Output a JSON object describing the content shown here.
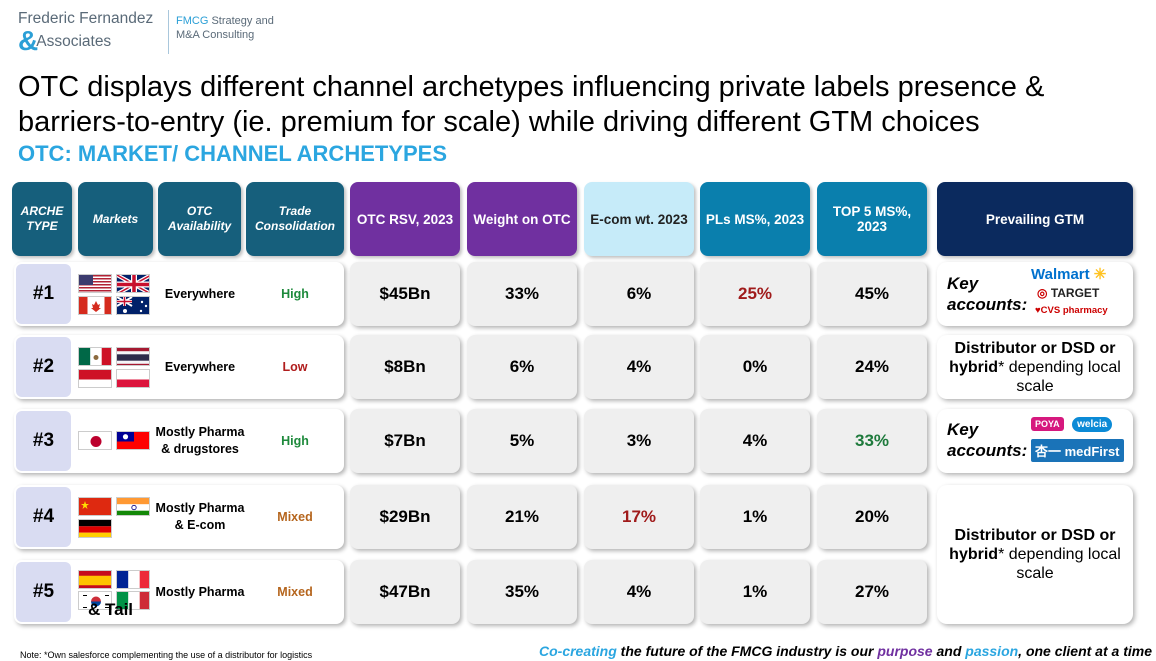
{
  "logo": {
    "name_line1": "Frederic Fernandez",
    "amp": "&",
    "name_line2": "Associates",
    "tag_hl": "FMCG",
    "tag_line1_rest": " Strategy and",
    "tag_line2": "M&A Consulting"
  },
  "title": "OTC displays different channel archetypes influencing private labels presence & barriers-to-entry (ie. premium for scale) while driving different GTM choices",
  "subtitle": "OTC: MARKET/ CHANNEL ARCHETYPES",
  "headers": {
    "archetype": "ARCHE TYPE",
    "markets": "Markets",
    "availability": "OTC Availability",
    "consolidation": "Trade Consolidation",
    "rsv": "OTC RSV, 2023",
    "weight": "Weight on OTC",
    "ecom": "E-com wt. 2023",
    "pls": "PLs MS%, 2023",
    "top5": "TOP 5 MS%, 2023",
    "gtm": "Prevailing GTM"
  },
  "rows": [
    {
      "num": "#1",
      "availability": "Everywhere",
      "consolidation": "High",
      "consolidation_color": "#1e8a3c",
      "rsv": "$45Bn",
      "weight": "33%",
      "ecom": "6%",
      "pls": "25%",
      "top5": "45%",
      "flags": [
        "us",
        "uk",
        "canada",
        "australia"
      ]
    },
    {
      "num": "#2",
      "availability": "Everywhere",
      "consolidation": "Low",
      "consolidation_color": "#b01d1d",
      "rsv": "$8Bn",
      "weight": "6%",
      "ecom": "4%",
      "pls": "0%",
      "top5": "24%",
      "flags": [
        "mexico",
        "thailand",
        "indonesia",
        "poland"
      ]
    },
    {
      "num": "#3",
      "availability": "Mostly Pharma & drugstores",
      "consolidation": "High",
      "consolidation_color": "#1e8a3c",
      "rsv": "$7Bn",
      "weight": "5%",
      "ecom": "3%",
      "pls": "4%",
      "top5": "33%",
      "flags": [
        "japan",
        "taiwan"
      ]
    },
    {
      "num": "#4",
      "availability": "Mostly Pharma & E-com",
      "consolidation": "Mixed",
      "consolidation_color": "#b5651d",
      "rsv": "$29Bn",
      "weight": "21%",
      "ecom": "17%",
      "pls": "1%",
      "top5": "20%",
      "flags": [
        "china",
        "india",
        "germany"
      ]
    },
    {
      "num": "#5",
      "availability": "Mostly Pharma",
      "consolidation": "Mixed",
      "consolidation_color": "#b5651d",
      "rsv": "$47Bn",
      "weight": "35%",
      "ecom": "4%",
      "pls": "1%",
      "top5": "27%",
      "flags": [
        "spain",
        "france",
        "korea",
        "italy"
      ],
      "tail": "& Tail"
    }
  ],
  "gtm": {
    "key_label": "Key accounts:",
    "row1_retailers": [
      "Walmart",
      "TARGET",
      "CVS pharmacy"
    ],
    "row2_bold": "Distributor or DSD or hybrid",
    "row2_rest": "* depending local scale",
    "row3_retailers": [
      "POYA",
      "welcia",
      "杏一 medFirst"
    ],
    "row45_bold": "Distributor or DSD or hybrid",
    "row45_rest": "* depending local scale"
  },
  "note": "Note: *Own salesforce complementing the use of a distributor for logistics",
  "footer": {
    "p1": "Co-creating",
    "p2": " the future of the FMCG industry is our ",
    "p3": "purpose",
    "p4": " and ",
    "p5": "passion",
    "p6": ", one client at a time"
  },
  "colors": {
    "accent": "#2ba6e0",
    "purple": "#7030a0",
    "navy": "#0b2a5e",
    "teal": "#165f7c"
  }
}
